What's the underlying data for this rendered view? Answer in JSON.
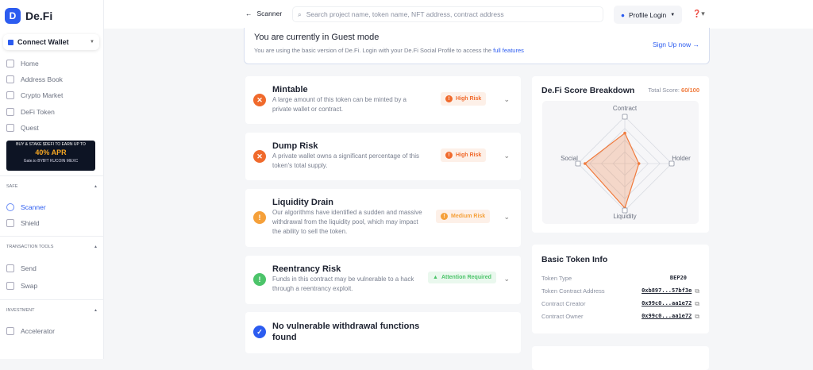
{
  "brand": "De.Fi",
  "sidebar": {
    "wallet": "Connect Wallet",
    "nav": [
      {
        "label": "Home",
        "icon": "home-icon"
      },
      {
        "label": "Address Book",
        "icon": "book-icon"
      },
      {
        "label": "Crypto Market",
        "icon": "chart-icon"
      },
      {
        "label": "DeFi Token",
        "icon": "token-icon"
      },
      {
        "label": "Quest",
        "icon": "quest-icon"
      }
    ],
    "promo": {
      "line1": "BUY & STAKE $DEFI TO EARN UP TO",
      "apr": "40% APR",
      "exchanges": "Gate.io  BYB!T  KUCOIN  MEXC"
    },
    "sections": [
      {
        "title": "SAFE",
        "items": [
          {
            "label": "Scanner",
            "active": true
          },
          {
            "label": "Shield"
          }
        ]
      },
      {
        "title": "TRANSACTION TOOLS",
        "items": [
          {
            "label": "Send"
          },
          {
            "label": "Swap"
          }
        ]
      },
      {
        "title": "INVESTMENT",
        "items": [
          {
            "label": "Accelerator"
          }
        ]
      }
    ]
  },
  "header": {
    "back": "Scanner",
    "search_placeholder": "Search project name, token name, NFT address, contract address",
    "profile": "Profile Login"
  },
  "banner": {
    "title": "You are currently in Guest mode",
    "text": "You are using the basic version of De.Fi. Login with your De.Fi Social Profile to access the ",
    "link": "full features",
    "signup": "Sign Up now →"
  },
  "issues": [
    {
      "title": "Mintable",
      "desc": "A large amount of this token can be minted by a private wallet or contract.",
      "badge": "High Risk",
      "color": "#f06a2c"
    },
    {
      "title": "Dump Risk",
      "desc": "A private wallet owns a significant percentage of this token's total supply.",
      "badge": "High Risk",
      "color": "#f06a2c"
    },
    {
      "title": "Liquidity Drain",
      "desc": "Our algorithms have identified a sudden and massive withdrawal from the liquidity pool, which may impact the ability to sell the token.",
      "badge": "Medium Risk",
      "color": "#f5a03a"
    },
    {
      "title": "Reentrancy Risk",
      "desc": "Funds in this contract may be vulnerable to a hack through a reentrancy exploit.",
      "badge": "Attention Required",
      "color": "#4cc46a"
    },
    {
      "title": "No vulnerable withdrawal functions found",
      "color": "#2c5cf0"
    }
  ],
  "score": {
    "title": "De.Fi Score Breakdown",
    "total_label": "Total Score: ",
    "total": "60/100"
  },
  "chart_data": {
    "type": "radar",
    "axes": [
      "Contract",
      "Holder",
      "Liquidity",
      "Social"
    ],
    "values": [
      65,
      30,
      95,
      85
    ],
    "max": 100,
    "color": "#f07a3c"
  },
  "token_info": {
    "title": "Basic Token Info",
    "rows": [
      {
        "label": "Token Type",
        "value": "BEP20"
      },
      {
        "label": "Token Contract Address",
        "value": "0xb897...57bf3e"
      },
      {
        "label": "Contract Creator",
        "value": "0x99c0...aa1e72"
      },
      {
        "label": "Contract Owner",
        "value": "0x99c0...aa1e72"
      }
    ]
  }
}
